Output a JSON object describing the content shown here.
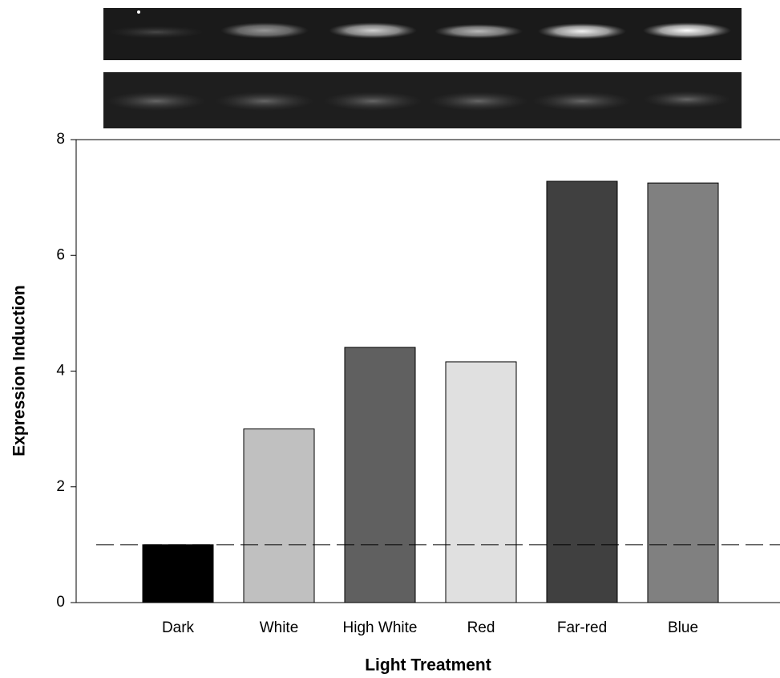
{
  "chart_data": {
    "type": "bar",
    "x_label": "Light Treatment",
    "y_label": "Expression Induction",
    "categories": [
      "Dark",
      "White",
      "High White",
      "Red",
      "Far-red",
      "Blue"
    ],
    "values": [
      1.0,
      3.0,
      4.41,
      4.16,
      7.28,
      7.25
    ],
    "colors": [
      "#000000",
      "#c0c0c0",
      "#606060",
      "#e0e0e0",
      "#404040",
      "#808080"
    ],
    "ylim": [
      0,
      8
    ],
    "yticks": [
      0,
      2,
      4,
      6,
      8
    ],
    "reference_line": 1
  }
}
